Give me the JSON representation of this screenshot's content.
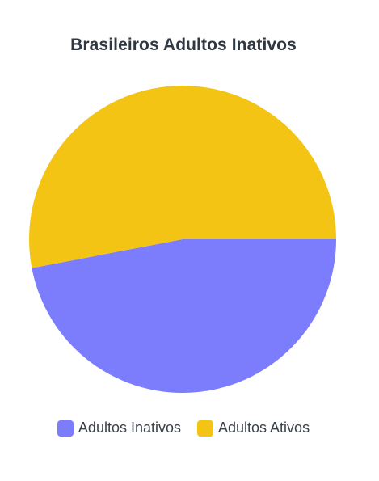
{
  "chart_data": {
    "type": "pie",
    "title": "Brasileiros Adultos Inativos",
    "categories": [
      "Adultos Inativos",
      "Adultos Ativos"
    ],
    "values": [
      47,
      53
    ],
    "colors": [
      "#7b7dfd",
      "#f3c414"
    ],
    "legend_position": "bottom"
  }
}
